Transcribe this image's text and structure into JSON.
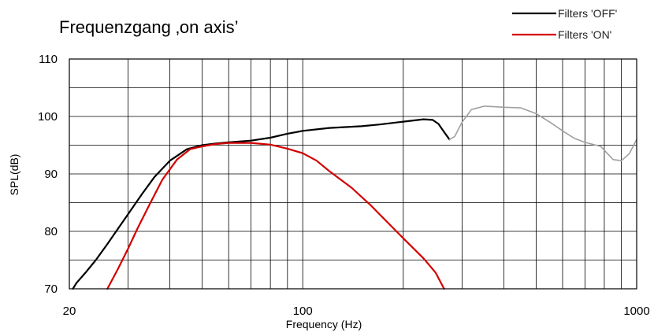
{
  "chart_data": {
    "type": "line",
    "title": "Frequenzgang ‚on axis’",
    "xlabel": "Frequency (Hz)",
    "ylabel": "SPL(dB)",
    "xscale": "log",
    "xlim": [
      20,
      1000
    ],
    "ylim": [
      70,
      110
    ],
    "grid": true,
    "legend_position": "top-right",
    "x_ticks": [
      {
        "value": 20,
        "label": "20"
      },
      {
        "value": 100,
        "label": "100"
      },
      {
        "value": 1000,
        "label": "1000"
      }
    ],
    "y_ticks": [
      {
        "value": 70,
        "label": "70"
      },
      {
        "value": 80,
        "label": "80"
      },
      {
        "value": 90,
        "label": "90"
      },
      {
        "value": 100,
        "label": "100"
      },
      {
        "value": 110,
        "label": "110"
      }
    ],
    "series": [
      {
        "name": "Filters 'OFF'",
        "color": "#000000",
        "points": [
          [
            20.5,
            70
          ],
          [
            21,
            71
          ],
          [
            22.5,
            73
          ],
          [
            24,
            75
          ],
          [
            26,
            77.8
          ],
          [
            28,
            80.5
          ],
          [
            30,
            83
          ],
          [
            33,
            86.5
          ],
          [
            36,
            89.5
          ],
          [
            40,
            92.3
          ],
          [
            45,
            94.3
          ],
          [
            50,
            95
          ],
          [
            55,
            95.3
          ],
          [
            60,
            95.5
          ],
          [
            70,
            95.8
          ],
          [
            80,
            96.3
          ],
          [
            90,
            97
          ],
          [
            100,
            97.5
          ],
          [
            120,
            98
          ],
          [
            150,
            98.3
          ],
          [
            170,
            98.6
          ],
          [
            200,
            99.1
          ],
          [
            230,
            99.5
          ],
          [
            245,
            99.4
          ],
          [
            255,
            98.7
          ],
          [
            265,
            97.3
          ],
          [
            275,
            96
          ]
        ]
      },
      {
        "name": "",
        "color": "#a0a0a0",
        "points": [
          [
            275,
            96
          ],
          [
            285,
            96.5
          ],
          [
            300,
            99
          ],
          [
            320,
            101.2
          ],
          [
            350,
            101.8
          ],
          [
            400,
            101.6
          ],
          [
            450,
            101.5
          ],
          [
            500,
            100.5
          ],
          [
            550,
            99
          ],
          [
            600,
            97.5
          ],
          [
            650,
            96.2
          ],
          [
            700,
            95.5
          ],
          [
            780,
            94.8
          ],
          [
            850,
            92.5
          ],
          [
            900,
            92.3
          ],
          [
            950,
            93.5
          ],
          [
            1000,
            96
          ]
        ]
      },
      {
        "name": "Filters 'ON'",
        "color": "#d40000",
        "points": [
          [
            26,
            70
          ],
          [
            28,
            73.5
          ],
          [
            30,
            77
          ],
          [
            32,
            80.5
          ],
          [
            35,
            85
          ],
          [
            38,
            89
          ],
          [
            42,
            92.5
          ],
          [
            46,
            94.3
          ],
          [
            50,
            94.8
          ],
          [
            55,
            95.2
          ],
          [
            60,
            95.4
          ],
          [
            70,
            95.4
          ],
          [
            80,
            95.1
          ],
          [
            90,
            94.4
          ],
          [
            100,
            93.6
          ],
          [
            110,
            92.3
          ],
          [
            120,
            90.5
          ],
          [
            140,
            87.6
          ],
          [
            160,
            84.5
          ],
          [
            180,
            81.5
          ],
          [
            200,
            78.8
          ],
          [
            230,
            75.3
          ],
          [
            250,
            72.8
          ],
          [
            265,
            70
          ]
        ]
      }
    ]
  }
}
